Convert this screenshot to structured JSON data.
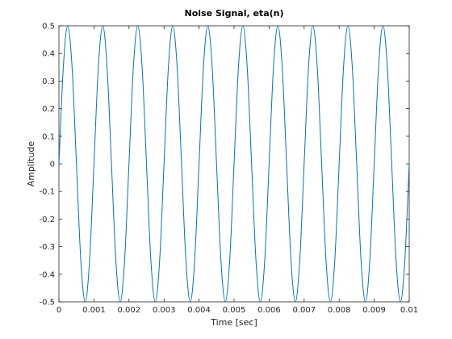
{
  "chart_data": {
    "type": "line",
    "title": "Noise Signal, eta(n)",
    "x_label": "Time [sec]",
    "y_label": "Amplitude",
    "x": [
      0,
      0.000125,
      0.00025,
      0.000375,
      0.0005,
      0.000625,
      0.00075,
      0.000875,
      0.001,
      0.001125,
      0.00125,
      0.001375,
      0.0015,
      0.001625,
      0.00175,
      0.001875,
      0.002,
      0.002125,
      0.00225,
      0.002375,
      0.0025,
      0.002625,
      0.00275,
      0.002875,
      0.003,
      0.003125,
      0.00325,
      0.003375,
      0.0035,
      0.003625,
      0.00375,
      0.003875,
      0.004,
      0.004125,
      0.00425,
      0.004375,
      0.0045,
      0.004625,
      0.00475,
      0.004875,
      0.005,
      0.005125,
      0.00525,
      0.005375,
      0.0055,
      0.005625,
      0.00575,
      0.005875,
      0.006,
      0.006125,
      0.00625,
      0.006375,
      0.0065,
      0.006625,
      0.00675,
      0.006875,
      0.007,
      0.007125,
      0.00725,
      0.007375,
      0.0075,
      0.007625,
      0.00775,
      0.007875,
      0.008,
      0.008125,
      0.00825,
      0.008375,
      0.0085,
      0.008625,
      0.00875,
      0.008875,
      0.009,
      0.009125,
      0.00925,
      0.009375,
      0.0095,
      0.009625,
      0.00975,
      0.009875,
      0.01
    ],
    "values": [
      0,
      0.35,
      0.5,
      0.35,
      0,
      -0.35,
      -0.5,
      -0.35,
      0,
      0.35,
      0.5,
      0.35,
      0,
      -0.35,
      -0.5,
      -0.35,
      0,
      0.35,
      0.5,
      0.35,
      0,
      -0.35,
      -0.5,
      -0.35,
      0,
      0.35,
      0.5,
      0.35,
      0,
      -0.35,
      -0.5,
      -0.35,
      0,
      0.35,
      0.5,
      0.35,
      0,
      -0.35,
      -0.5,
      -0.35,
      0,
      0.35,
      0.5,
      0.35,
      0,
      -0.35,
      -0.5,
      -0.35,
      0,
      0.35,
      0.5,
      0.35,
      0,
      -0.35,
      -0.5,
      -0.35,
      0,
      0.35,
      0.5,
      0.35,
      0,
      -0.35,
      -0.5,
      -0.35,
      0,
      0.35,
      0.5,
      0.35,
      0,
      -0.35,
      -0.5,
      -0.35,
      0,
      0.35,
      0.5,
      0.35,
      0,
      -0.35,
      -0.5,
      -0.35,
      0
    ],
    "color": "#0072bd",
    "xlim": [
      0,
      0.01
    ],
    "xticks": [
      0,
      0.001,
      0.002,
      0.003,
      0.004,
      0.005,
      0.006,
      0.007,
      0.008,
      0.009,
      0.01
    ],
    "ylim": [
      -0.5,
      0.5
    ],
    "yticks": [
      -0.5,
      -0.4,
      -0.3,
      -0.2,
      -0.1,
      0,
      0.1,
      0.2,
      0.3,
      0.4,
      0.5
    ],
    "grid": false
  }
}
